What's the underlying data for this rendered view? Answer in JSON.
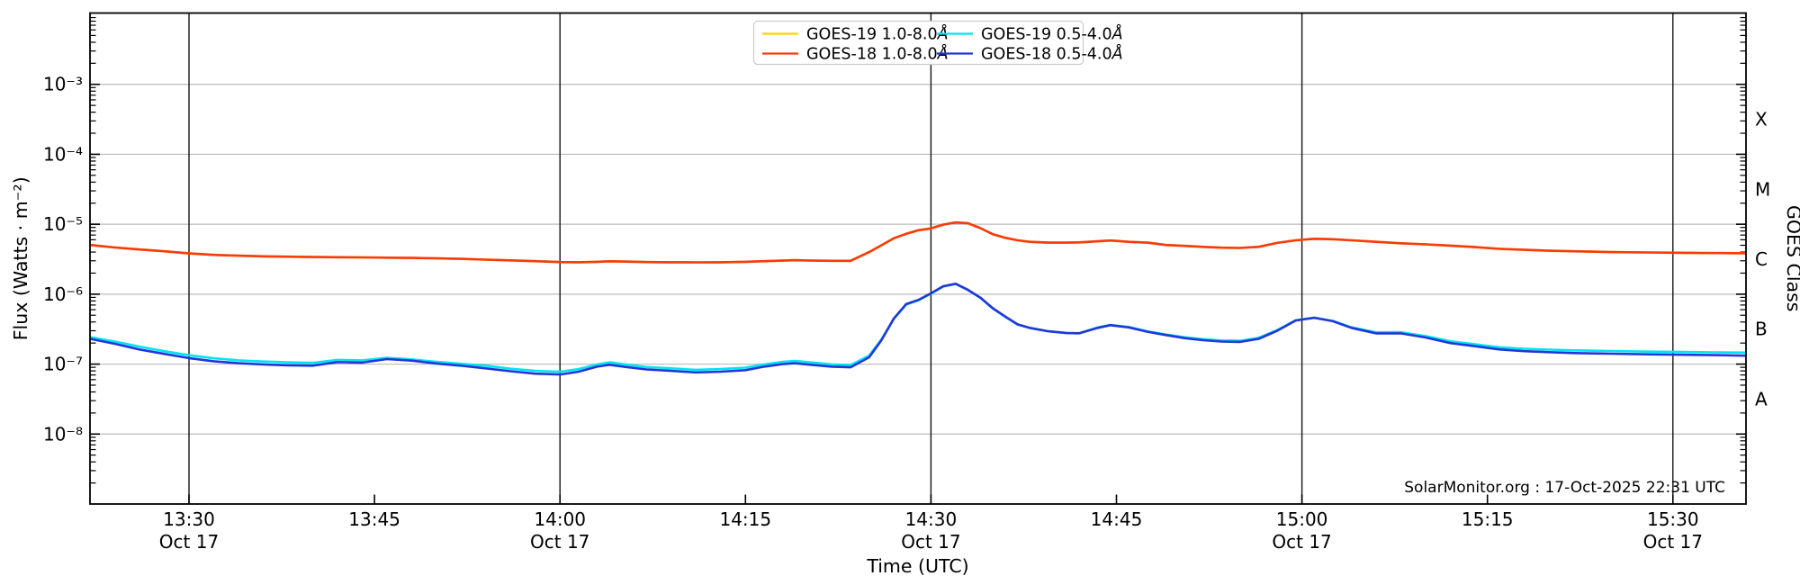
{
  "chart_data": {
    "type": "line",
    "title": "",
    "xlabel": "Time (UTC)",
    "ylabel": "Flux (Watts · m⁻²)",
    "right_axis_label": "GOES Class",
    "attribution": "SolarMonitor.org : 17-Oct-2025 22:31 UTC",
    "grid": {
      "h_color": "#bbbbbb",
      "v_color": "#141414",
      "axis_color": "#000000"
    },
    "legend": {
      "border_color": "#cccccc",
      "fill": "#ffffff"
    },
    "y_scale": "log",
    "y_range_exp": [
      -9,
      -2
    ],
    "y_ticks": [
      {
        "exp": -3,
        "label": "10⁻³"
      },
      {
        "exp": -4,
        "label": "10⁻⁴"
      },
      {
        "exp": -5,
        "label": "10⁻⁵"
      },
      {
        "exp": -6,
        "label": "10⁻⁶"
      },
      {
        "exp": -7,
        "label": "10⁻⁷"
      },
      {
        "exp": -8,
        "label": "10⁻⁸"
      }
    ],
    "goes_classes": [
      {
        "label": "X",
        "center_exp": -3.5
      },
      {
        "label": "M",
        "center_exp": -4.5
      },
      {
        "label": "C",
        "center_exp": -5.5
      },
      {
        "label": "B",
        "center_exp": -6.5
      },
      {
        "label": "A",
        "center_exp": -7.5
      }
    ],
    "x_range_minutes": [
      22,
      155.9
    ],
    "x_ticks": [
      {
        "t": 30,
        "label": "13:30",
        "date": "Oct 17",
        "gridline": true
      },
      {
        "t": 45,
        "label": "13:45",
        "date": "",
        "gridline": false
      },
      {
        "t": 60,
        "label": "14:00",
        "date": "Oct 17",
        "gridline": true
      },
      {
        "t": 75,
        "label": "14:15",
        "date": "",
        "gridline": false
      },
      {
        "t": 90,
        "label": "14:30",
        "date": "Oct 17",
        "gridline": true
      },
      {
        "t": 105,
        "label": "14:45",
        "date": "",
        "gridline": false
      },
      {
        "t": 120,
        "label": "15:00",
        "date": "Oct 17",
        "gridline": true
      },
      {
        "t": 135,
        "label": "15:15",
        "date": "",
        "gridline": false
      },
      {
        "t": 150,
        "label": "15:30",
        "date": "Oct 17",
        "gridline": true
      }
    ],
    "x_minutes": [
      22,
      24,
      26,
      28,
      30,
      32,
      34,
      36,
      38,
      40,
      42,
      44,
      46,
      48,
      50,
      52,
      54,
      56,
      58,
      60,
      61.5,
      63,
      64,
      65.5,
      67,
      69,
      71,
      73,
      75,
      76.5,
      78,
      79,
      80.5,
      82,
      83.5,
      85,
      86,
      87,
      88,
      89,
      90,
      91,
      92,
      93,
      94,
      95,
      96,
      97,
      98,
      99.5,
      101,
      102,
      103.5,
      104.5,
      106,
      107.5,
      109,
      110.5,
      112,
      113.5,
      115,
      116.5,
      118,
      119.5,
      121,
      122.5,
      124,
      126,
      128,
      130,
      132,
      134,
      136,
      138,
      140,
      142,
      145,
      148,
      151,
      154,
      156
    ],
    "series": [
      {
        "name": "GOES-19 1.0-8.0Å",
        "color": "#ffd400",
        "scale": 1e-06,
        "values": [
          5.05,
          4.65,
          4.35,
          4.1,
          3.82,
          3.65,
          3.55,
          3.48,
          3.44,
          3.4,
          3.38,
          3.36,
          3.33,
          3.3,
          3.26,
          3.2,
          3.12,
          3.04,
          2.96,
          2.88,
          2.86,
          2.9,
          2.95,
          2.92,
          2.88,
          2.86,
          2.85,
          2.86,
          2.9,
          2.96,
          3.02,
          3.06,
          3.02,
          3.0,
          3.0,
          4.0,
          5.0,
          6.3,
          7.3,
          8.2,
          8.7,
          9.9,
          10.6,
          10.3,
          8.8,
          7.2,
          6.4,
          5.9,
          5.6,
          5.45,
          5.45,
          5.5,
          5.7,
          5.85,
          5.6,
          5.45,
          5.05,
          4.9,
          4.75,
          4.62,
          4.58,
          4.75,
          5.4,
          5.9,
          6.2,
          6.1,
          5.9,
          5.6,
          5.35,
          5.15,
          4.95,
          4.7,
          4.45,
          4.3,
          4.18,
          4.1,
          4.0,
          3.95,
          3.9,
          3.87,
          3.85
        ]
      },
      {
        "name": "GOES-18 1.0-8.0Å",
        "color": "#f93a0c",
        "scale": 1e-06,
        "values": [
          5.05,
          4.65,
          4.35,
          4.1,
          3.82,
          3.65,
          3.55,
          3.48,
          3.44,
          3.4,
          3.38,
          3.36,
          3.33,
          3.3,
          3.26,
          3.2,
          3.12,
          3.04,
          2.96,
          2.88,
          2.86,
          2.9,
          2.95,
          2.92,
          2.88,
          2.86,
          2.85,
          2.86,
          2.9,
          2.96,
          3.02,
          3.06,
          3.02,
          3.0,
          3.0,
          4.0,
          5.0,
          6.3,
          7.3,
          8.2,
          8.7,
          9.9,
          10.6,
          10.3,
          8.8,
          7.2,
          6.4,
          5.9,
          5.6,
          5.45,
          5.45,
          5.5,
          5.7,
          5.85,
          5.6,
          5.45,
          5.05,
          4.9,
          4.75,
          4.62,
          4.58,
          4.75,
          5.4,
          5.9,
          6.2,
          6.1,
          5.9,
          5.6,
          5.35,
          5.15,
          4.95,
          4.7,
          4.45,
          4.3,
          4.18,
          4.1,
          4.0,
          3.95,
          3.9,
          3.87,
          3.85
        ]
      },
      {
        "name": "GOES-19 0.5-4.0Å",
        "color": "#00e4f2",
        "scale": 1e-07,
        "values": [
          2.42,
          2.1,
          1.78,
          1.53,
          1.34,
          1.21,
          1.13,
          1.09,
          1.06,
          1.04,
          1.15,
          1.13,
          1.23,
          1.17,
          1.08,
          1.01,
          0.95,
          0.86,
          0.8,
          0.78,
          0.85,
          0.99,
          1.06,
          0.98,
          0.91,
          0.87,
          0.83,
          0.85,
          0.89,
          0.99,
          1.08,
          1.11,
          1.05,
          0.99,
          0.97,
          1.32,
          2.25,
          4.45,
          7.1,
          8.2,
          10.2,
          12.9,
          14.0,
          11.4,
          8.85,
          6.25,
          4.75,
          3.68,
          3.28,
          2.95,
          2.78,
          2.76,
          3.35,
          3.64,
          3.4,
          2.95,
          2.66,
          2.42,
          2.28,
          2.18,
          2.16,
          2.38,
          3.06,
          4.24,
          4.62,
          4.14,
          3.36,
          2.84,
          2.86,
          2.52,
          2.12,
          1.92,
          1.74,
          1.66,
          1.61,
          1.57,
          1.54,
          1.51,
          1.49,
          1.47,
          1.46
        ]
      },
      {
        "name": "GOES-18 0.5-4.0Å",
        "color": "#2236d8",
        "scale": 1e-07,
        "values": [
          2.3,
          1.95,
          1.62,
          1.4,
          1.22,
          1.1,
          1.03,
          0.99,
          0.96,
          0.95,
          1.07,
          1.05,
          1.18,
          1.12,
          1.02,
          0.95,
          0.87,
          0.79,
          0.73,
          0.71,
          0.78,
          0.92,
          0.98,
          0.9,
          0.84,
          0.8,
          0.76,
          0.78,
          0.82,
          0.92,
          1.0,
          1.03,
          0.97,
          0.92,
          0.9,
          1.25,
          2.2,
          4.5,
          7.2,
          8.3,
          10.3,
          13.0,
          14.1,
          11.5,
          8.9,
          6.3,
          4.8,
          3.7,
          3.3,
          2.95,
          2.78,
          2.76,
          3.3,
          3.6,
          3.35,
          2.9,
          2.6,
          2.35,
          2.2,
          2.1,
          2.08,
          2.3,
          3.0,
          4.2,
          4.6,
          4.1,
          3.3,
          2.75,
          2.75,
          2.4,
          2.0,
          1.8,
          1.62,
          1.53,
          1.48,
          1.44,
          1.41,
          1.38,
          1.36,
          1.34,
          1.32
        ]
      }
    ]
  }
}
